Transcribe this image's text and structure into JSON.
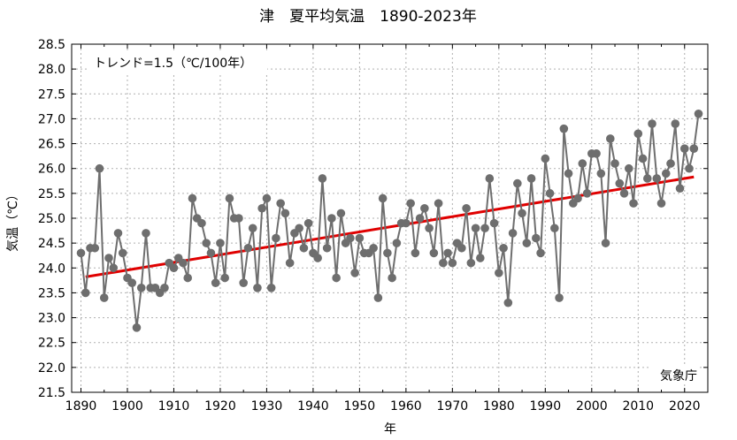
{
  "chart_data": {
    "type": "line",
    "title": "津　夏平均気温　1890-2023年",
    "xlabel": "年",
    "ylabel": "気温（℃）",
    "xlim": [
      1888,
      2025
    ],
    "ylim": [
      21.5,
      28.5
    ],
    "xticks": [
      1890,
      1900,
      1910,
      1920,
      1930,
      1940,
      1950,
      1960,
      1970,
      1980,
      1990,
      2000,
      2010,
      2020
    ],
    "xtick_labels": [
      "1890",
      "1900",
      "1910",
      "1920",
      "1930",
      "1940",
      "1950",
      "1960",
      "1970",
      "1980",
      "1990",
      "2000",
      "2010",
      "2020"
    ],
    "yticks": [
      21.5,
      22.0,
      22.5,
      23.0,
      23.5,
      24.0,
      24.5,
      25.0,
      25.5,
      26.0,
      26.5,
      27.0,
      27.5,
      28.0,
      28.5
    ],
    "ytick_labels": [
      "21.5",
      "22.0",
      "22.5",
      "23.0",
      "23.5",
      "24.0",
      "24.5",
      "25.0",
      "25.5",
      "26.0",
      "26.5",
      "27.0",
      "27.5",
      "28.0",
      "28.5"
    ],
    "grid": true,
    "trend_annotation": "トレンド=1.5（℃/100年）",
    "source_label": "気象庁",
    "colors": {
      "series": "#6e6e6e",
      "trend": "#e00000",
      "grid": "#b0b0b0"
    },
    "series": [
      {
        "x": [
          1890,
          1891,
          1892,
          1893,
          1894,
          1895,
          1896,
          1897,
          1898,
          1899,
          1900,
          1901,
          1902,
          1903,
          1904,
          1905,
          1906,
          1907,
          1908,
          1909,
          1910,
          1911,
          1912,
          1913,
          1914,
          1915,
          1916,
          1917,
          1918,
          1919,
          1920,
          1921,
          1922,
          1923,
          1924,
          1925,
          1926,
          1927,
          1928,
          1929,
          1930,
          1931,
          1932,
          1933,
          1934,
          1935,
          1936,
          1937,
          1938,
          1939,
          1940,
          1941,
          1942,
          1943,
          1944,
          1945,
          1946,
          1947,
          1948,
          1949,
          1950,
          1951,
          1952,
          1953,
          1954,
          1955,
          1956,
          1957,
          1958,
          1959,
          1960,
          1961,
          1962,
          1963,
          1964,
          1965,
          1966,
          1967,
          1968,
          1969,
          1970,
          1971,
          1972,
          1973,
          1974,
          1975,
          1976,
          1977,
          1978,
          1979,
          1980,
          1981,
          1982,
          1983,
          1984,
          1985,
          1986,
          1987,
          1988,
          1989,
          1990,
          1991,
          1992,
          1993,
          1994,
          1995,
          1996,
          1997,
          1998,
          1999,
          2000,
          2001,
          2002,
          2003,
          2004,
          2005,
          2006,
          2007,
          2008,
          2009,
          2010,
          2011,
          2012,
          2013,
          2014,
          2015,
          2016,
          2017,
          2018,
          2019,
          2020,
          2021,
          2022,
          2023
        ],
        "values": [
          24.3,
          23.5,
          24.4,
          24.4,
          26.0,
          23.4,
          24.2,
          24.0,
          24.7,
          24.3,
          23.8,
          23.7,
          22.8,
          23.6,
          24.7,
          23.6,
          23.6,
          23.5,
          23.6,
          24.1,
          24.0,
          24.2,
          24.1,
          23.8,
          25.4,
          25.0,
          24.9,
          24.5,
          24.3,
          23.7,
          24.5,
          23.8,
          25.4,
          25.0,
          25.0,
          23.7,
          24.4,
          24.8,
          23.6,
          25.2,
          25.4,
          23.6,
          24.6,
          25.3,
          25.1,
          24.1,
          24.7,
          24.8,
          24.4,
          24.9,
          24.3,
          24.2,
          25.8,
          24.4,
          25.0,
          23.8,
          25.1,
          24.5,
          24.6,
          23.9,
          24.6,
          24.3,
          24.3,
          24.4,
          23.4,
          25.4,
          24.3,
          23.8,
          24.5,
          24.9,
          24.9,
          25.3,
          24.3,
          25.0,
          25.2,
          24.8,
          24.3,
          25.3,
          24.1,
          24.3,
          24.1,
          24.5,
          24.4,
          25.2,
          24.1,
          24.8,
          24.2,
          24.8,
          25.8,
          24.9,
          23.9,
          24.4,
          23.3,
          24.7,
          25.7,
          25.1,
          24.5,
          25.8,
          24.6,
          24.3,
          26.2,
          25.5,
          24.8,
          23.4,
          26.8,
          25.9,
          25.3,
          25.4,
          26.1,
          25.5,
          26.3,
          26.3,
          25.9,
          24.5,
          26.6,
          26.1,
          25.7,
          25.5,
          26.0,
          25.3,
          26.7,
          26.2,
          25.8,
          26.9,
          25.8,
          25.3,
          25.9,
          26.1,
          26.9,
          25.6,
          26.4,
          26.0,
          26.4,
          27.1
        ]
      }
    ],
    "trend": {
      "x": [
        1891,
        2022
      ],
      "y": [
        23.82,
        25.83
      ]
    }
  }
}
